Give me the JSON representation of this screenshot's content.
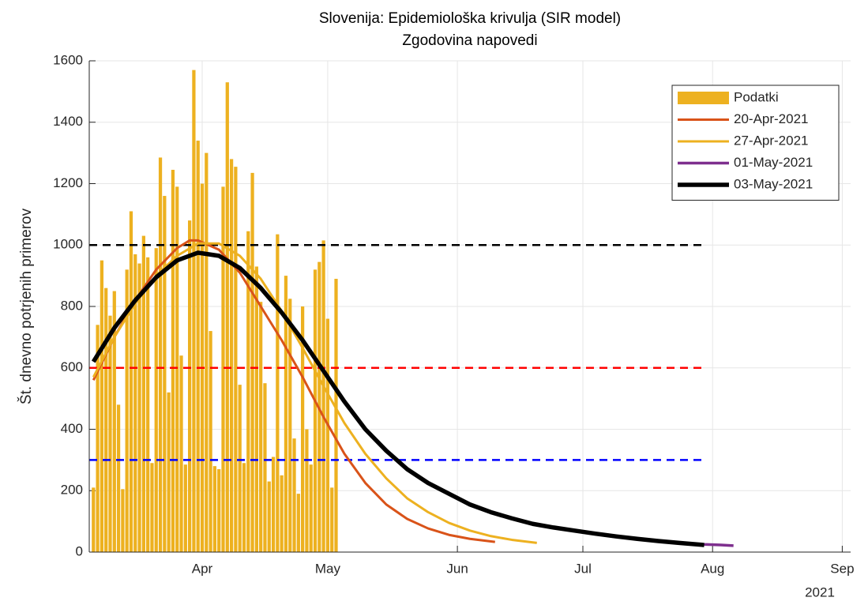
{
  "chart_data": {
    "type": "line",
    "title": "Slovenija: Epidemiološka krivulja (SIR model)",
    "subtitle": "Zgodovina napovedi",
    "y_label": "Št. dnevno potrjenih primerov",
    "x_secondary_label": "2021",
    "xlim": [
      64,
      246
    ],
    "xticks": [
      {
        "value": 91,
        "label": "Apr"
      },
      {
        "value": 121,
        "label": "May"
      },
      {
        "value": 152,
        "label": "Jun"
      },
      {
        "value": 182,
        "label": "Jul"
      },
      {
        "value": 213,
        "label": "Aug"
      },
      {
        "value": 244,
        "label": "Sep"
      }
    ],
    "ylim": [
      0,
      1600
    ],
    "yticks": [
      0,
      200,
      400,
      600,
      800,
      1000,
      1200,
      1400,
      1600
    ],
    "grid": true,
    "legend": "northeast",
    "series": [
      {
        "name": "Podatki",
        "type": "bar",
        "color": "#EDB120",
        "x": [
          65,
          66,
          67,
          68,
          69,
          70,
          71,
          72,
          73,
          74,
          75,
          76,
          77,
          78,
          79,
          80,
          81,
          82,
          83,
          84,
          85,
          86,
          87,
          88,
          89,
          90,
          91,
          92,
          93,
          94,
          95,
          96,
          97,
          98,
          99,
          100,
          101,
          102,
          103,
          104,
          105,
          106,
          107,
          108,
          109,
          110,
          111,
          112,
          113,
          114,
          115,
          116,
          117,
          118,
          119,
          120,
          121,
          122,
          123
        ],
        "values": [
          210,
          740,
          950,
          860,
          770,
          850,
          480,
          205,
          920,
          1110,
          970,
          940,
          1030,
          960,
          290,
          990,
          1285,
          1160,
          520,
          1245,
          1190,
          640,
          285,
          1080,
          1570,
          1340,
          1200,
          1300,
          720,
          280,
          270,
          1190,
          1530,
          1280,
          1255,
          545,
          290,
          1045,
          1235,
          930,
          815,
          550,
          230,
          310,
          1035,
          250,
          900,
          825,
          370,
          190,
          800,
          400,
          285,
          920,
          945,
          1015,
          760,
          210,
          890
        ]
      },
      {
        "name": "20-Apr-2021",
        "type": "line",
        "color": "#D95319",
        "width": 3,
        "x": [
          65,
          70,
          75,
          80,
          85,
          88,
          90,
          95,
          100,
          105,
          110,
          115,
          120,
          125,
          130,
          135,
          140,
          145,
          150,
          155,
          161
        ],
        "values": [
          560,
          700,
          820,
          920,
          990,
          1015,
          1015,
          985,
          910,
          800,
          690,
          570,
          440,
          320,
          225,
          155,
          108,
          77,
          56,
          43,
          33
        ]
      },
      {
        "name": "27-Apr-2021",
        "type": "line",
        "color": "#EDB120",
        "width": 3,
        "x": [
          65,
          70,
          75,
          80,
          85,
          90,
          95,
          100,
          105,
          110,
          115,
          120,
          125,
          130,
          135,
          140,
          145,
          150,
          155,
          160,
          165,
          171
        ],
        "values": [
          570,
          700,
          810,
          900,
          965,
          1005,
          1005,
          965,
          890,
          785,
          665,
          540,
          420,
          320,
          240,
          175,
          130,
          95,
          70,
          52,
          40,
          30
        ]
      },
      {
        "name": "01-May-2021",
        "type": "line",
        "color": "#7E2F8E",
        "width": 3.5,
        "x": [
          65,
          70,
          75,
          80,
          85,
          90,
          95,
          100,
          105,
          110,
          115,
          120,
          125,
          130,
          135,
          140,
          145,
          150,
          155,
          160,
          165,
          170,
          175,
          180,
          185,
          190,
          195,
          200,
          205,
          211,
          215,
          218
        ],
        "values": [
          620,
          730,
          820,
          895,
          950,
          975,
          965,
          925,
          860,
          780,
          690,
          590,
          490,
          400,
          330,
          270,
          225,
          190,
          155,
          130,
          110,
          92,
          80,
          70,
          60,
          51,
          43,
          36,
          30,
          25,
          23,
          21
        ]
      },
      {
        "name": "03-May-2021",
        "type": "line",
        "color": "#000000",
        "width": 5.5,
        "x": [
          65,
          70,
          75,
          80,
          85,
          90,
          95,
          100,
          105,
          110,
          115,
          120,
          125,
          130,
          135,
          140,
          145,
          150,
          155,
          160,
          165,
          170,
          175,
          180,
          185,
          190,
          195,
          200,
          205,
          211
        ],
        "values": [
          620,
          730,
          820,
          895,
          950,
          975,
          965,
          925,
          860,
          780,
          690,
          590,
          490,
          400,
          330,
          270,
          225,
          190,
          155,
          130,
          110,
          92,
          80,
          70,
          60,
          51,
          43,
          36,
          30,
          23
        ]
      }
    ],
    "reference_lines": [
      {
        "y": 1000,
        "x": [
          64,
          211
        ],
        "color": "#000000"
      },
      {
        "y": 600,
        "x": [
          64,
          211
        ],
        "color": "#FF0000"
      },
      {
        "y": 300,
        "x": [
          64,
          211
        ],
        "color": "#0000FF"
      }
    ]
  }
}
